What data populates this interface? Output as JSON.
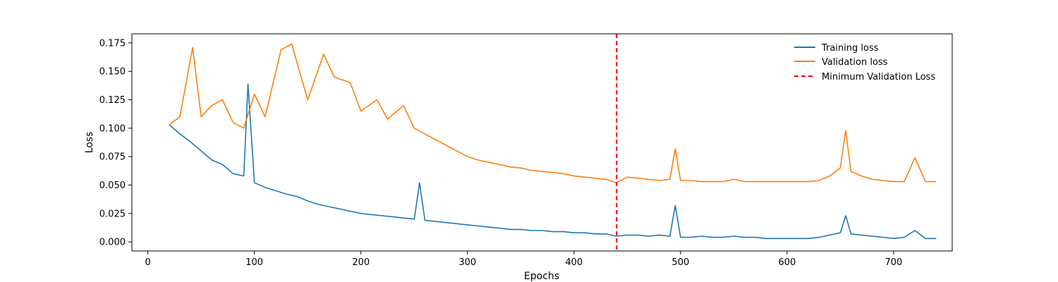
{
  "chart_data": {
    "type": "line",
    "xlabel": "Epochs",
    "ylabel": "Loss",
    "xlim": [
      -15,
      755
    ],
    "ylim": [
      -0.008,
      0.183
    ],
    "xticks": [
      0,
      100,
      200,
      300,
      400,
      500,
      600,
      700
    ],
    "yticks": [
      0.0,
      0.025,
      0.05,
      0.075,
      0.1,
      0.125,
      0.15,
      0.175
    ],
    "ytick_labels": [
      "0.000",
      "0.025",
      "0.050",
      "0.075",
      "0.100",
      "0.125",
      "0.150",
      "0.175"
    ],
    "grid": false,
    "legend_position": "top-right",
    "series": [
      {
        "name": "Training loss",
        "color": "#1f77b4",
        "x": [
          20,
          30,
          40,
          50,
          60,
          70,
          80,
          90,
          94,
          100,
          110,
          120,
          130,
          140,
          150,
          160,
          170,
          180,
          190,
          200,
          210,
          220,
          230,
          240,
          250,
          255,
          260,
          270,
          280,
          290,
          300,
          310,
          320,
          330,
          340,
          350,
          360,
          370,
          380,
          390,
          400,
          410,
          420,
          430,
          440,
          450,
          460,
          470,
          480,
          490,
          495,
          500,
          510,
          520,
          530,
          540,
          550,
          560,
          570,
          580,
          590,
          600,
          610,
          620,
          630,
          640,
          650,
          655,
          660,
          670,
          680,
          690,
          700,
          710,
          720,
          730,
          740
        ],
        "y": [
          0.103,
          0.095,
          0.088,
          0.08,
          0.072,
          0.068,
          0.06,
          0.058,
          0.139,
          0.052,
          0.048,
          0.045,
          0.042,
          0.04,
          0.036,
          0.033,
          0.031,
          0.029,
          0.027,
          0.025,
          0.024,
          0.023,
          0.022,
          0.021,
          0.02,
          0.052,
          0.019,
          0.018,
          0.017,
          0.016,
          0.015,
          0.014,
          0.013,
          0.012,
          0.011,
          0.011,
          0.01,
          0.01,
          0.009,
          0.009,
          0.008,
          0.008,
          0.007,
          0.007,
          0.005,
          0.006,
          0.006,
          0.005,
          0.006,
          0.005,
          0.032,
          0.004,
          0.004,
          0.005,
          0.004,
          0.004,
          0.005,
          0.004,
          0.004,
          0.003,
          0.003,
          0.003,
          0.003,
          0.003,
          0.004,
          0.006,
          0.008,
          0.023,
          0.007,
          0.006,
          0.005,
          0.004,
          0.003,
          0.004,
          0.01,
          0.003,
          0.003
        ]
      },
      {
        "name": "Validation loss",
        "color": "#ff7f0e",
        "x": [
          20,
          30,
          42,
          50,
          60,
          70,
          80,
          90,
          100,
          110,
          125,
          135,
          150,
          165,
          175,
          190,
          200,
          215,
          225,
          240,
          250,
          260,
          270,
          280,
          290,
          300,
          310,
          320,
          330,
          340,
          350,
          360,
          370,
          380,
          390,
          400,
          410,
          420,
          430,
          440,
          450,
          460,
          470,
          480,
          490,
          495,
          500,
          510,
          520,
          530,
          540,
          550,
          560,
          570,
          580,
          590,
          600,
          610,
          620,
          630,
          640,
          650,
          655,
          660,
          670,
          680,
          690,
          700,
          710,
          720,
          730,
          740
        ],
        "y": [
          0.103,
          0.11,
          0.171,
          0.11,
          0.12,
          0.125,
          0.105,
          0.1,
          0.13,
          0.11,
          0.169,
          0.174,
          0.125,
          0.165,
          0.145,
          0.14,
          0.115,
          0.125,
          0.108,
          0.12,
          0.1,
          0.095,
          0.09,
          0.085,
          0.08,
          0.075,
          0.072,
          0.07,
          0.068,
          0.066,
          0.065,
          0.063,
          0.062,
          0.061,
          0.06,
          0.058,
          0.057,
          0.056,
          0.055,
          0.052,
          0.057,
          0.056,
          0.055,
          0.054,
          0.055,
          0.082,
          0.054,
          0.054,
          0.053,
          0.053,
          0.053,
          0.055,
          0.053,
          0.053,
          0.053,
          0.053,
          0.053,
          0.053,
          0.053,
          0.054,
          0.058,
          0.065,
          0.098,
          0.062,
          0.058,
          0.055,
          0.054,
          0.053,
          0.053,
          0.074,
          0.053,
          0.053
        ]
      },
      {
        "name": "Minimum Validation Loss",
        "color": "#ff0000",
        "type": "vline",
        "x": 440,
        "style": "dashed"
      }
    ]
  }
}
